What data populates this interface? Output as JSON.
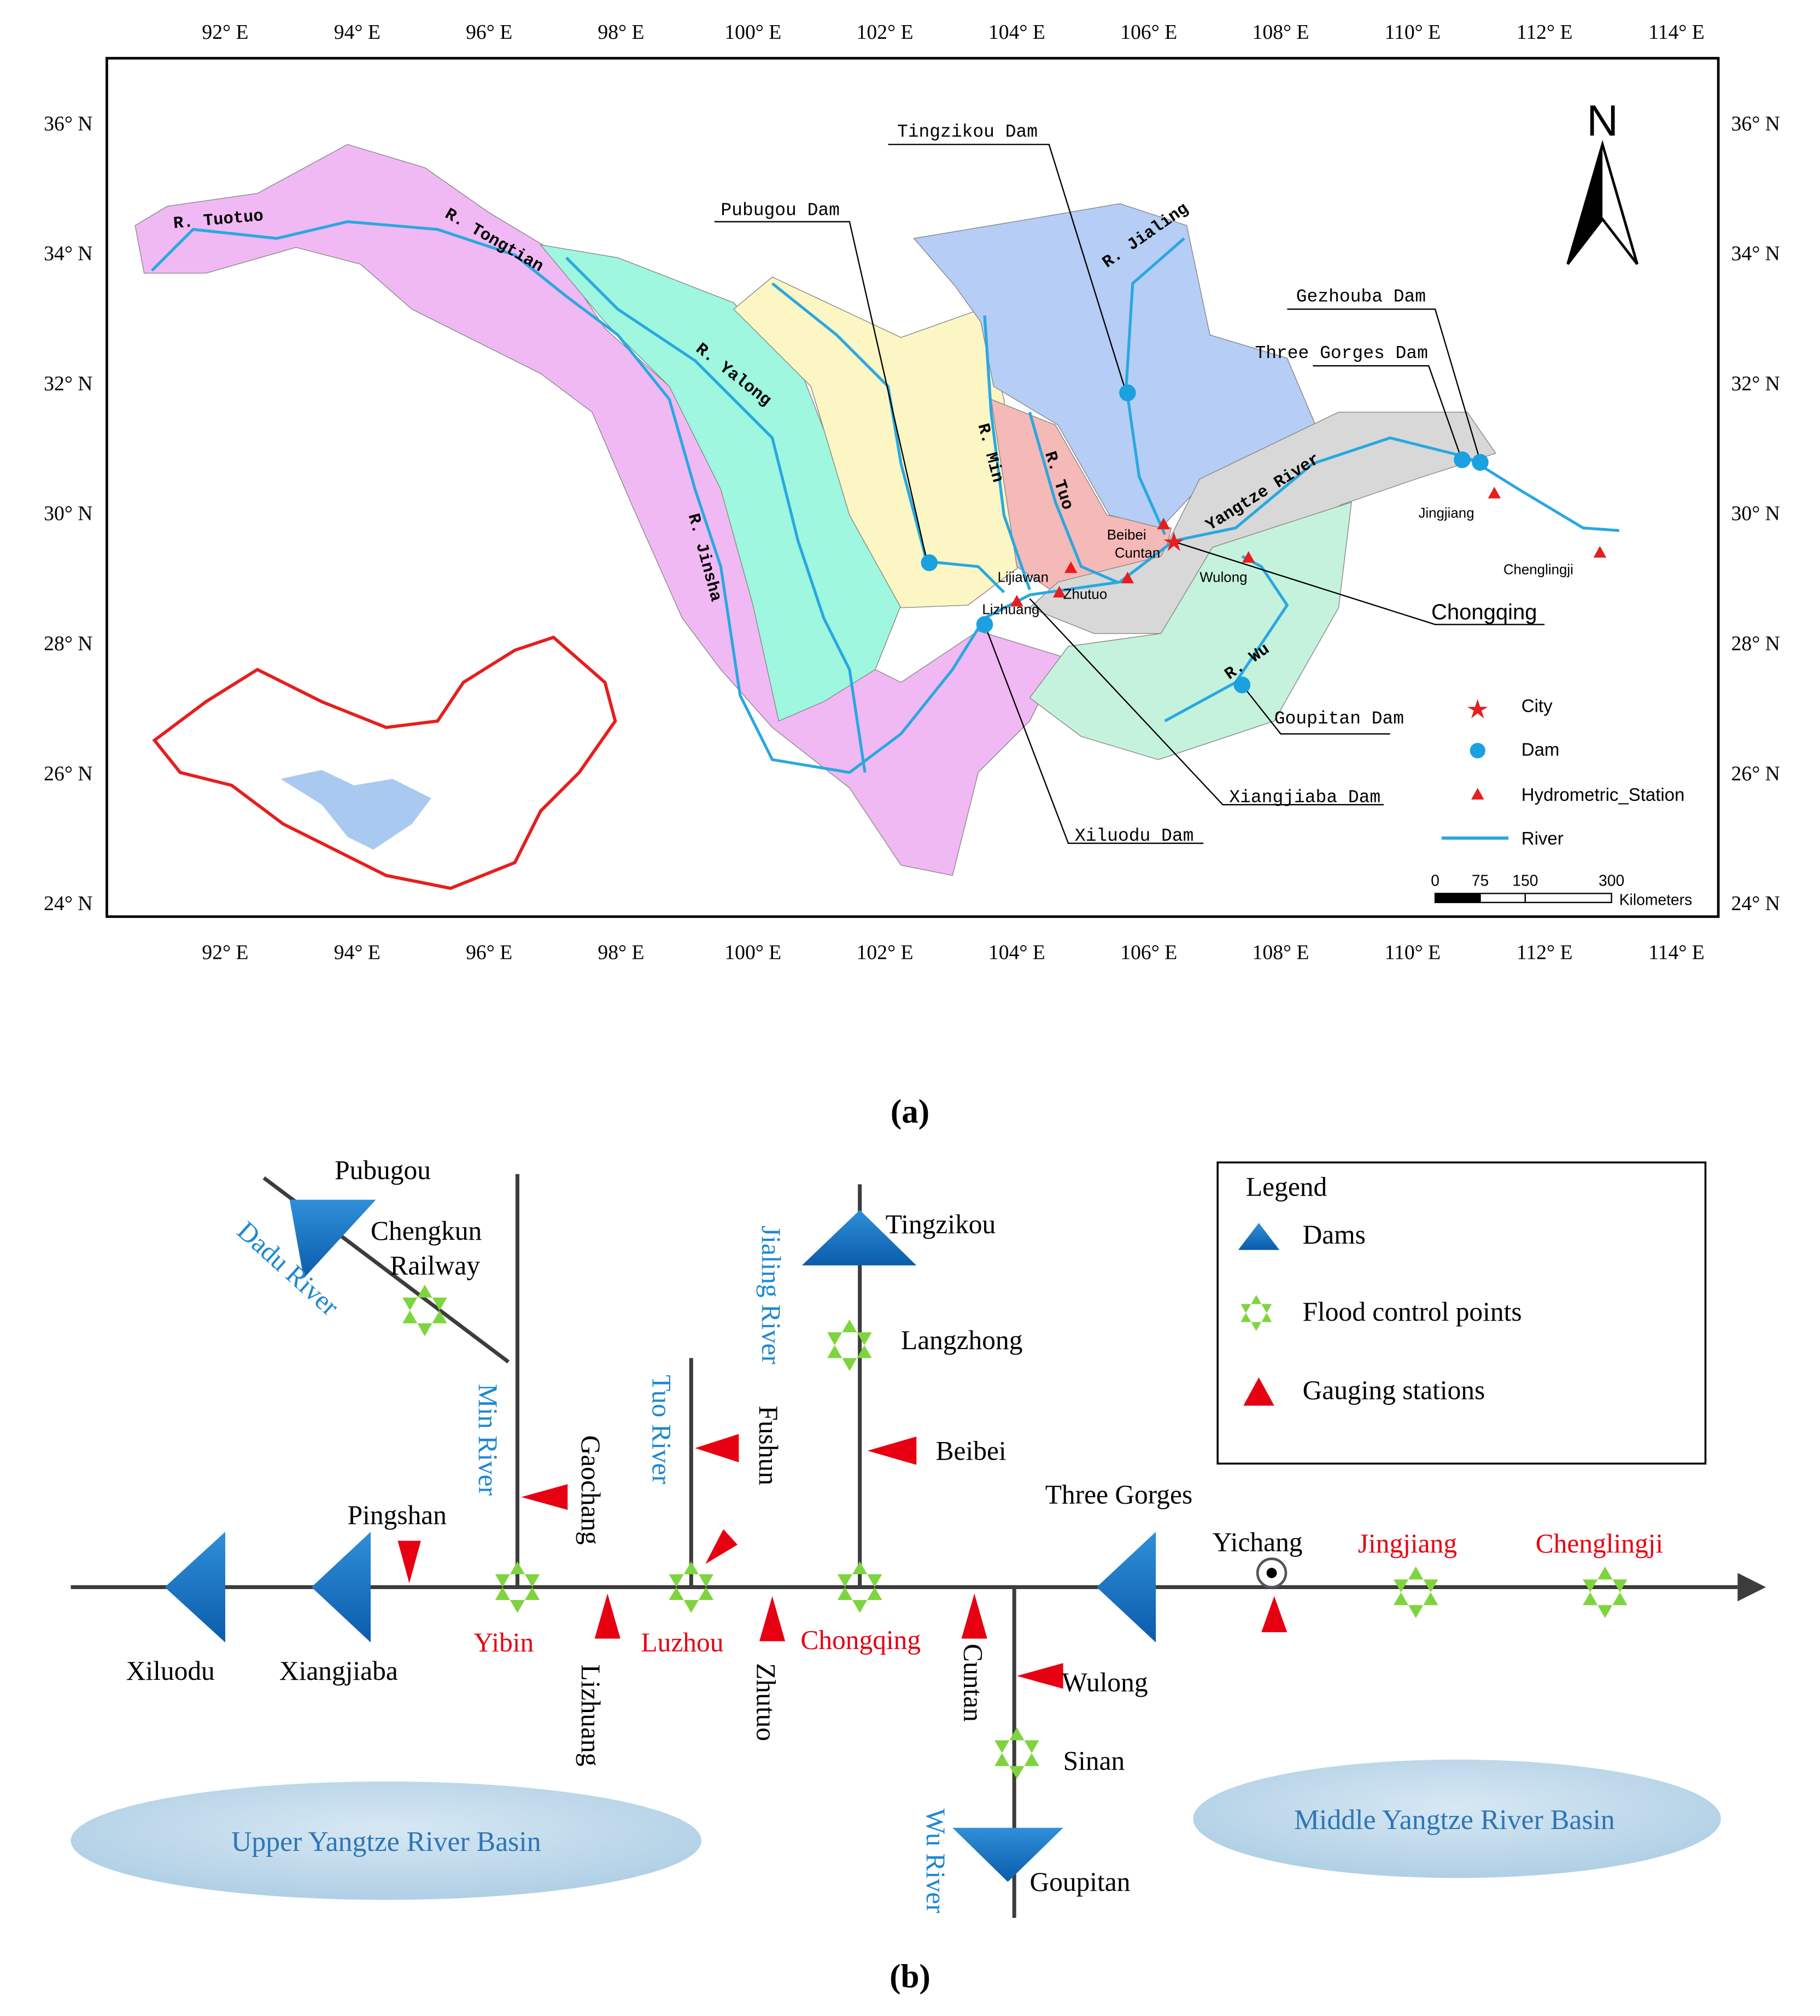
{
  "panel_a": {
    "lon_labels": [
      "92° E",
      "94° E",
      "96° E",
      "98° E",
      "100° E",
      "102° E",
      "104° E",
      "106° E",
      "108° E",
      "110° E",
      "112° E",
      "114° E"
    ],
    "lat_labels": [
      "36° N",
      "34° N",
      "32° N",
      "30° N",
      "28° N",
      "26° N",
      "24° N"
    ],
    "north": "N",
    "rivers": [
      "R. Tuotuo",
      "R. Tongtian",
      "R. Yalong",
      "R. Jinsha",
      "R. Min",
      "R. Tuo",
      "R. Jialing",
      "Yangtze River",
      "R. Wu"
    ],
    "dams": [
      "Pubugou Dam",
      "Tingzikou Dam",
      "Gezhouba Dam",
      "Three Gorges Dam",
      "Goupitan Dam",
      "Xiangjiaba Dam",
      "Xiluodu Dam"
    ],
    "places": [
      "Jingjiang",
      "Chenglingji",
      "Beibei",
      "Cuntan",
      "Wulong",
      "Lijiawan",
      "Zhutuo",
      "Lizhuang",
      "Chongqing"
    ],
    "legend": [
      "City",
      "Dam",
      "Hydrometric_Station",
      "River"
    ],
    "scale": {
      "ticks": [
        0,
        75,
        150,
        300
      ],
      "unit": "Kilometers"
    },
    "caption": "(a)"
  },
  "panel_b": {
    "rivers": [
      "Dadu River",
      "Min River",
      "Tuo River",
      "Jialing River",
      "Wu River"
    ],
    "stations": [
      "Pubugou",
      "Chengkun",
      "Railway",
      "Tingzikou",
      "Langzhong",
      "Fushun",
      "Beibei",
      "Gaochang",
      "Pingshan",
      "Three Gorges",
      "Yichang",
      "Xiluodu",
      "Xiangjiaba",
      "Lizhuang",
      "Zhutuo",
      "Cuntan",
      "Wulong",
      "Sinan",
      "Goupitan"
    ],
    "cities": [
      "Yibin",
      "Luzhou",
      "Chongqing",
      "Jingjiang",
      "Chenglingji"
    ],
    "legend": {
      "title": "Legend",
      "items": [
        "Dams",
        "Flood control points",
        "Gauging stations"
      ]
    },
    "basins": [
      "Upper Yangtze River Basin",
      "Middle Yangtze River Basin"
    ],
    "caption": "(b)"
  }
}
